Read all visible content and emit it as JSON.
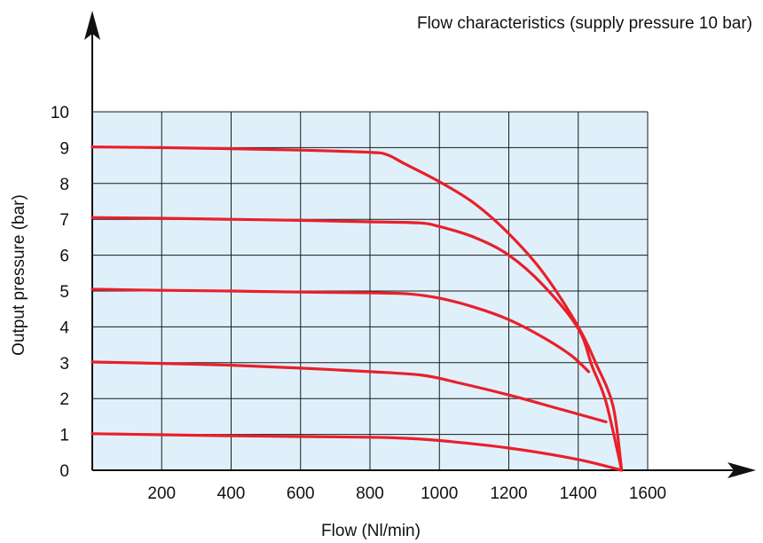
{
  "chart_data": {
    "type": "line",
    "title": "Flow characteristics (supply pressure 10 bar)",
    "xlabel": "Flow (Nl/min)",
    "ylabel": "Output pressure (bar)",
    "xlim": [
      0,
      1600
    ],
    "ylim": [
      0,
      10
    ],
    "x_ticks": [
      "200",
      "400",
      "600",
      "800",
      "1000",
      "1200",
      "1400",
      "1600"
    ],
    "y_ticks": [
      "0",
      "1",
      "2",
      "3",
      "4",
      "5",
      "6",
      "7",
      "8",
      "9",
      "10"
    ],
    "grid": true,
    "plot_background": "#dff0fa",
    "grid_color": "#1a1a1a",
    "line_color": "#e8202a",
    "axis_color": "#111111",
    "series": [
      {
        "points": [
          [
            0,
            9.02
          ],
          [
            200,
            9.0
          ],
          [
            400,
            8.97
          ],
          [
            600,
            8.93
          ],
          [
            800,
            8.87
          ],
          [
            850,
            8.8
          ],
          [
            900,
            8.55
          ],
          [
            1000,
            8.05
          ],
          [
            1100,
            7.45
          ],
          [
            1200,
            6.6
          ],
          [
            1300,
            5.5
          ],
          [
            1400,
            4.0
          ],
          [
            1450,
            3.0
          ],
          [
            1500,
            1.8
          ],
          [
            1525,
            0.0
          ]
        ]
      },
      {
        "points": [
          [
            0,
            7.05
          ],
          [
            200,
            7.03
          ],
          [
            400,
            7.0
          ],
          [
            600,
            6.97
          ],
          [
            800,
            6.93
          ],
          [
            940,
            6.9
          ],
          [
            1000,
            6.8
          ],
          [
            1100,
            6.5
          ],
          [
            1200,
            6.0
          ],
          [
            1300,
            5.15
          ],
          [
            1400,
            3.95
          ],
          [
            1440,
            2.9
          ],
          [
            1480,
            1.9
          ],
          [
            1525,
            0.0
          ]
        ]
      },
      {
        "points": [
          [
            0,
            5.05
          ],
          [
            200,
            5.02
          ],
          [
            400,
            5.0
          ],
          [
            600,
            4.97
          ],
          [
            800,
            4.95
          ],
          [
            910,
            4.92
          ],
          [
            1000,
            4.8
          ],
          [
            1100,
            4.55
          ],
          [
            1200,
            4.2
          ],
          [
            1300,
            3.7
          ],
          [
            1380,
            3.2
          ],
          [
            1430,
            2.75
          ]
        ]
      },
      {
        "points": [
          [
            0,
            3.02
          ],
          [
            200,
            2.98
          ],
          [
            400,
            2.93
          ],
          [
            600,
            2.85
          ],
          [
            800,
            2.75
          ],
          [
            950,
            2.65
          ],
          [
            1050,
            2.45
          ],
          [
            1200,
            2.1
          ],
          [
            1350,
            1.7
          ],
          [
            1480,
            1.35
          ]
        ]
      },
      {
        "points": [
          [
            0,
            1.02
          ],
          [
            200,
            0.99
          ],
          [
            400,
            0.96
          ],
          [
            600,
            0.94
          ],
          [
            800,
            0.92
          ],
          [
            880,
            0.9
          ],
          [
            1000,
            0.83
          ],
          [
            1200,
            0.62
          ],
          [
            1400,
            0.3
          ],
          [
            1525,
            0.0
          ]
        ]
      }
    ]
  }
}
